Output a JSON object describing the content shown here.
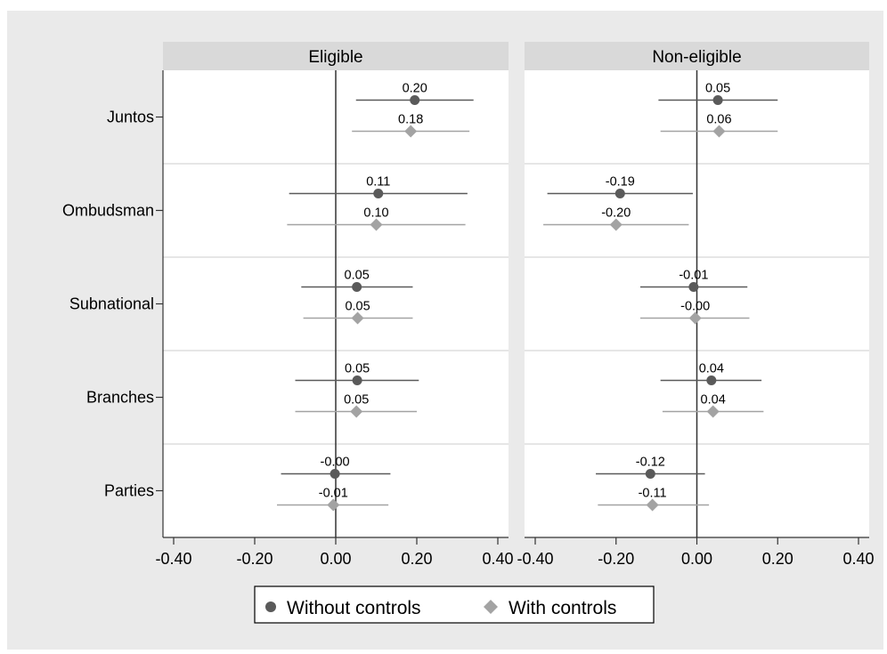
{
  "chart_data": {
    "type": "scatter",
    "subtype": "coefficient-plot-with-confidence-intervals",
    "categories": [
      "Juntos",
      "Ombudsman",
      "Subnational",
      "Branches",
      "Parties"
    ],
    "xlim": [
      -0.4,
      0.4
    ],
    "xticks": [
      -0.4,
      -0.2,
      0.0,
      0.2,
      0.4
    ],
    "xtick_labels": [
      "-0.40",
      "-0.20",
      "0.00",
      "0.20",
      "0.40"
    ],
    "grid": true,
    "legend_position": "bottom",
    "legend": [
      {
        "key": "without",
        "label": "Without controls",
        "marker": "circle",
        "color": "#5a5a5a"
      },
      {
        "key": "with",
        "label": "With controls",
        "marker": "diamond",
        "color": "#a3a3a3"
      }
    ],
    "panels": [
      {
        "title": "Eligible",
        "series": [
          {
            "key": "without",
            "points": [
              {
                "category": "Juntos",
                "estimate": 0.195,
                "ci": [
                  0.05,
                  0.34
                ],
                "label": "0.20"
              },
              {
                "category": "Ombudsman",
                "estimate": 0.105,
                "ci": [
                  -0.115,
                  0.325
                ],
                "label": "0.11"
              },
              {
                "category": "Subnational",
                "estimate": 0.052,
                "ci": [
                  -0.085,
                  0.19
                ],
                "label": "0.05"
              },
              {
                "category": "Branches",
                "estimate": 0.053,
                "ci": [
                  -0.1,
                  0.205
                ],
                "label": "0.05"
              },
              {
                "category": "Parties",
                "estimate": -0.002,
                "ci": [
                  -0.135,
                  0.135
                ],
                "label": "-0.00"
              }
            ]
          },
          {
            "key": "with",
            "points": [
              {
                "category": "Juntos",
                "estimate": 0.185,
                "ci": [
                  0.04,
                  0.33
                ],
                "label": "0.18"
              },
              {
                "category": "Ombudsman",
                "estimate": 0.1,
                "ci": [
                  -0.12,
                  0.32
                ],
                "label": "0.10"
              },
              {
                "category": "Subnational",
                "estimate": 0.054,
                "ci": [
                  -0.08,
                  0.19
                ],
                "label": "0.05"
              },
              {
                "category": "Branches",
                "estimate": 0.051,
                "ci": [
                  -0.1,
                  0.2
                ],
                "label": "0.05"
              },
              {
                "category": "Parties",
                "estimate": -0.006,
                "ci": [
                  -0.145,
                  0.13
                ],
                "label": "-0.01"
              }
            ]
          }
        ]
      },
      {
        "title": "Non-eligible",
        "series": [
          {
            "key": "without",
            "points": [
              {
                "category": "Juntos",
                "estimate": 0.052,
                "ci": [
                  -0.095,
                  0.2
                ],
                "label": "0.05"
              },
              {
                "category": "Ombudsman",
                "estimate": -0.19,
                "ci": [
                  -0.37,
                  -0.01
                ],
                "label": "-0.19"
              },
              {
                "category": "Subnational",
                "estimate": -0.008,
                "ci": [
                  -0.14,
                  0.125
                ],
                "label": "-0.01"
              },
              {
                "category": "Branches",
                "estimate": 0.036,
                "ci": [
                  -0.09,
                  0.16
                ],
                "label": "0.04"
              },
              {
                "category": "Parties",
                "estimate": -0.115,
                "ci": [
                  -0.25,
                  0.02
                ],
                "label": "-0.12"
              }
            ]
          },
          {
            "key": "with",
            "points": [
              {
                "category": "Juntos",
                "estimate": 0.055,
                "ci": [
                  -0.09,
                  0.2
                ],
                "label": "0.06"
              },
              {
                "category": "Ombudsman",
                "estimate": -0.2,
                "ci": [
                  -0.38,
                  -0.02
                ],
                "label": "-0.20"
              },
              {
                "category": "Subnational",
                "estimate": -0.004,
                "ci": [
                  -0.14,
                  0.13
                ],
                "label": "-0.00"
              },
              {
                "category": "Branches",
                "estimate": 0.04,
                "ci": [
                  -0.085,
                  0.165
                ],
                "label": "0.04"
              },
              {
                "category": "Parties",
                "estimate": -0.11,
                "ci": [
                  -0.245,
                  0.03
                ],
                "label": "-0.11"
              }
            ]
          }
        ]
      }
    ]
  },
  "colors": {
    "background": "#ffffff",
    "plot_region": "#eaeaea",
    "panel_fill": "#ffffff",
    "strip_fill": "#d9d9d9",
    "divider": "#e6e6e6",
    "axis": "#333333"
  }
}
